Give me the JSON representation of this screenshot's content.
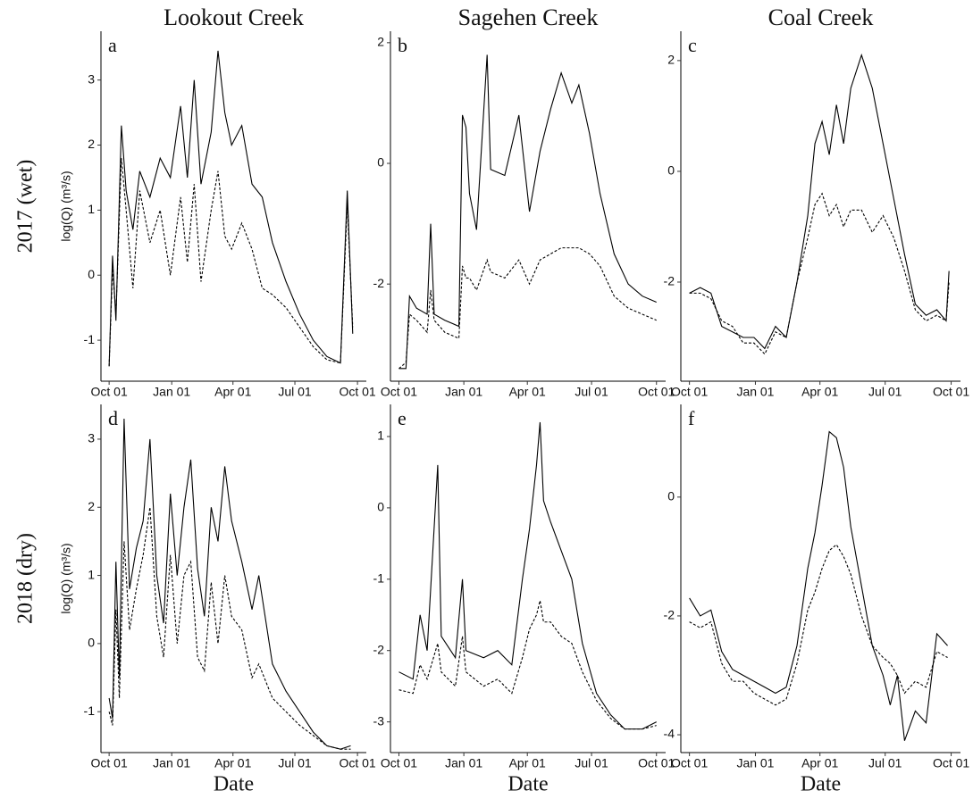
{
  "column_titles": [
    "Lookout Creek",
    "Sagehen Creek",
    "Coal Creek"
  ],
  "row_titles": [
    "2017 (wet)",
    "2018 (dry)"
  ],
  "chart_data": [
    {
      "type": "line",
      "label": "a",
      "ylabel": "log(Q) (m³/s)",
      "x": [
        0,
        5,
        10,
        18,
        25,
        35,
        45,
        60,
        75,
        90,
        105,
        115,
        125,
        135,
        150,
        160,
        170,
        180,
        195,
        210,
        225,
        240,
        260,
        280,
        300,
        320,
        340,
        350,
        358
      ],
      "series": [
        {
          "color": "#000000",
          "linestyle": "solid",
          "values": [
            -1.4,
            0.3,
            -0.7,
            2.3,
            1.3,
            0.7,
            1.6,
            1.2,
            1.8,
            1.5,
            2.6,
            1.5,
            3.0,
            1.4,
            2.2,
            3.45,
            2.5,
            2.0,
            2.3,
            1.4,
            1.2,
            0.5,
            -0.1,
            -0.6,
            -1.0,
            -1.25,
            -1.35,
            1.3,
            -0.9
          ]
        },
        {
          "color": "#000000",
          "linestyle": "dashed",
          "values": [
            -1.4,
            0.1,
            -0.6,
            1.8,
            1.0,
            -0.2,
            1.3,
            0.5,
            1.0,
            0.0,
            1.2,
            0.2,
            1.4,
            -0.1,
            1.0,
            1.6,
            0.6,
            0.4,
            0.8,
            0.4,
            -0.2,
            -0.3,
            -0.5,
            -0.8,
            -1.1,
            -1.3,
            -1.35,
            1.1,
            -0.8
          ]
        }
      ],
      "xlim": [
        -12,
        378
      ],
      "xticks": [
        {
          "value": 0,
          "label": "Oct 01"
        },
        {
          "value": 92,
          "label": "Jan 01"
        },
        {
          "value": 182,
          "label": "Apr 01"
        },
        {
          "value": 273,
          "label": "Jul 01"
        },
        {
          "value": 365,
          "label": "Oct 01"
        }
      ],
      "ylim": [
        -1.63,
        3.75
      ],
      "yticks": [
        -1,
        0,
        1,
        2,
        3
      ]
    },
    {
      "type": "line",
      "label": "b",
      "x": [
        0,
        10,
        15,
        25,
        40,
        45,
        50,
        65,
        85,
        90,
        95,
        100,
        110,
        125,
        130,
        150,
        170,
        185,
        200,
        215,
        230,
        245,
        255,
        270,
        285,
        305,
        325,
        345,
        365
      ],
      "series": [
        {
          "color": "#000000",
          "linestyle": "solid",
          "values": [
            -3.4,
            -3.4,
            -2.2,
            -2.4,
            -2.5,
            -1.0,
            -2.5,
            -2.6,
            -2.7,
            0.8,
            0.6,
            -0.5,
            -1.1,
            1.8,
            -0.1,
            -0.2,
            0.8,
            -0.8,
            0.2,
            0.9,
            1.5,
            1.0,
            1.3,
            0.5,
            -0.5,
            -1.5,
            -2.0,
            -2.2,
            -2.3
          ]
        },
        {
          "color": "#000000",
          "linestyle": "dashed",
          "values": [
            -3.4,
            -3.3,
            -2.5,
            -2.6,
            -2.8,
            -2.1,
            -2.6,
            -2.8,
            -2.9,
            -1.7,
            -1.9,
            -1.9,
            -2.1,
            -1.6,
            -1.8,
            -1.9,
            -1.6,
            -2.0,
            -1.6,
            -1.5,
            -1.4,
            -1.4,
            -1.4,
            -1.5,
            -1.7,
            -2.2,
            -2.4,
            -2.5,
            -2.6
          ]
        }
      ],
      "xlim": [
        -12,
        378
      ],
      "xticks": [
        {
          "value": 0,
          "label": "Oct 01"
        },
        {
          "value": 92,
          "label": "Jan 01"
        },
        {
          "value": 182,
          "label": "Apr 01"
        },
        {
          "value": 273,
          "label": "Jul 01"
        },
        {
          "value": 365,
          "label": "Oct 01"
        }
      ],
      "ylim": [
        -3.61,
        2.19
      ],
      "yticks": [
        -2,
        0,
        2
      ]
    },
    {
      "type": "line",
      "label": "c",
      "x": [
        0,
        15,
        30,
        45,
        60,
        75,
        90,
        105,
        120,
        135,
        150,
        165,
        175,
        185,
        195,
        205,
        215,
        225,
        240,
        255,
        270,
        285,
        300,
        315,
        330,
        345,
        358,
        362
      ],
      "series": [
        {
          "color": "#000000",
          "linestyle": "solid",
          "values": [
            -2.2,
            -2.1,
            -2.2,
            -2.8,
            -2.9,
            -3.0,
            -3.0,
            -3.2,
            -2.8,
            -3.0,
            -2.0,
            -0.8,
            0.5,
            0.9,
            0.3,
            1.2,
            0.5,
            1.5,
            2.1,
            1.5,
            0.5,
            -0.5,
            -1.5,
            -2.4,
            -2.6,
            -2.5,
            -2.7,
            -1.8
          ]
        },
        {
          "color": "#000000",
          "linestyle": "dashed",
          "values": [
            -2.2,
            -2.2,
            -2.3,
            -2.7,
            -2.8,
            -3.1,
            -3.1,
            -3.3,
            -2.9,
            -3.0,
            -2.0,
            -1.2,
            -0.6,
            -0.4,
            -0.8,
            -0.6,
            -1.0,
            -0.7,
            -0.7,
            -1.1,
            -0.8,
            -1.2,
            -1.8,
            -2.5,
            -2.7,
            -2.6,
            -2.7,
            -2.0
          ]
        }
      ],
      "xlim": [
        -12,
        378
      ],
      "xticks": [
        {
          "value": 0,
          "label": "Oct 01"
        },
        {
          "value": 92,
          "label": "Jan 01"
        },
        {
          "value": 182,
          "label": "Apr 01"
        },
        {
          "value": 273,
          "label": "Jul 01"
        },
        {
          "value": 365,
          "label": "Oct 01"
        }
      ],
      "ylim": [
        -3.79,
        2.53
      ],
      "yticks": [
        -2,
        0,
        2
      ]
    },
    {
      "type": "line",
      "label": "d",
      "ylabel": "log(Q) (m³/s)",
      "xlabel": "Date",
      "x": [
        0,
        5,
        10,
        15,
        22,
        30,
        40,
        50,
        60,
        70,
        80,
        90,
        100,
        110,
        120,
        130,
        140,
        150,
        160,
        170,
        180,
        195,
        210,
        220,
        240,
        260,
        280,
        300,
        320,
        340,
        355
      ],
      "series": [
        {
          "color": "#000000",
          "linestyle": "solid",
          "values": [
            -0.8,
            -1.1,
            1.2,
            -0.5,
            3.3,
            0.8,
            1.4,
            1.8,
            3.0,
            1.0,
            0.3,
            2.2,
            1.0,
            2.0,
            2.7,
            1.1,
            0.4,
            2.0,
            1.5,
            2.6,
            1.8,
            1.2,
            0.5,
            1.0,
            -0.3,
            -0.7,
            -1.0,
            -1.3,
            -1.5,
            -1.55,
            -1.5
          ]
        },
        {
          "color": "#000000",
          "linestyle": "dashed",
          "values": [
            -1.0,
            -1.2,
            0.5,
            -0.8,
            1.5,
            0.2,
            0.8,
            1.3,
            2.0,
            0.4,
            -0.2,
            1.3,
            0.0,
            1.0,
            1.2,
            -0.2,
            -0.4,
            0.9,
            0.0,
            1.0,
            0.4,
            0.2,
            -0.5,
            -0.3,
            -0.8,
            -1.0,
            -1.2,
            -1.35,
            -1.5,
            -1.55,
            -1.55
          ]
        }
      ],
      "xlim": [
        -12,
        378
      ],
      "xticks": [
        {
          "value": 0,
          "label": "Oct 01"
        },
        {
          "value": 92,
          "label": "Jan 01"
        },
        {
          "value": 182,
          "label": "Apr 01"
        },
        {
          "value": 273,
          "label": "Jul 01"
        },
        {
          "value": 365,
          "label": "Oct 01"
        }
      ],
      "ylim": [
        -1.6,
        3.51
      ],
      "yticks": [
        -1,
        0,
        1,
        2,
        3
      ]
    },
    {
      "type": "line",
      "label": "e",
      "xlabel": "Date",
      "x": [
        0,
        20,
        30,
        40,
        55,
        60,
        80,
        90,
        95,
        120,
        140,
        160,
        175,
        185,
        195,
        200,
        205,
        215,
        230,
        245,
        260,
        280,
        300,
        320,
        345,
        365
      ],
      "series": [
        {
          "color": "#000000",
          "linestyle": "solid",
          "values": [
            -2.3,
            -2.4,
            -1.5,
            -2.0,
            0.6,
            -1.8,
            -2.1,
            -1.0,
            -2.0,
            -2.1,
            -2.0,
            -2.2,
            -1.0,
            -0.3,
            0.6,
            1.2,
            0.1,
            -0.2,
            -0.6,
            -1.0,
            -1.9,
            -2.6,
            -2.9,
            -3.1,
            -3.1,
            -3.0
          ]
        },
        {
          "color": "#000000",
          "linestyle": "dashed",
          "values": [
            -2.55,
            -2.6,
            -2.2,
            -2.4,
            -1.9,
            -2.3,
            -2.5,
            -1.8,
            -2.3,
            -2.5,
            -2.4,
            -2.6,
            -2.1,
            -1.7,
            -1.5,
            -1.3,
            -1.6,
            -1.6,
            -1.8,
            -1.9,
            -2.3,
            -2.7,
            -2.95,
            -3.1,
            -3.1,
            -3.05
          ]
        }
      ],
      "xlim": [
        -12,
        378
      ],
      "xticks": [
        {
          "value": 0,
          "label": "Oct 01"
        },
        {
          "value": 92,
          "label": "Jan 01"
        },
        {
          "value": 182,
          "label": "Apr 01"
        },
        {
          "value": 273,
          "label": "Jul 01"
        },
        {
          "value": 365,
          "label": "Oct 01"
        }
      ],
      "ylim": [
        -3.43,
        1.45
      ],
      "yticks": [
        -3,
        -2,
        -1,
        0,
        1
      ]
    },
    {
      "type": "line",
      "label": "f",
      "xlabel": "Date",
      "x": [
        0,
        15,
        30,
        45,
        60,
        75,
        90,
        105,
        120,
        135,
        150,
        165,
        175,
        185,
        195,
        205,
        215,
        225,
        240,
        255,
        270,
        280,
        290,
        300,
        315,
        330,
        345,
        360
      ],
      "series": [
        {
          "color": "#000000",
          "linestyle": "solid",
          "values": [
            -1.7,
            -2.0,
            -1.9,
            -2.6,
            -2.9,
            -3.0,
            -3.1,
            -3.2,
            -3.3,
            -3.2,
            -2.5,
            -1.2,
            -0.6,
            0.2,
            1.1,
            1.0,
            0.5,
            -0.5,
            -1.5,
            -2.5,
            -3.0,
            -3.5,
            -3.0,
            -4.1,
            -3.6,
            -3.8,
            -2.3,
            -2.5
          ]
        },
        {
          "color": "#000000",
          "linestyle": "dashed",
          "values": [
            -2.1,
            -2.2,
            -2.1,
            -2.8,
            -3.1,
            -3.1,
            -3.3,
            -3.4,
            -3.5,
            -3.4,
            -2.8,
            -1.9,
            -1.6,
            -1.2,
            -0.9,
            -0.8,
            -1.0,
            -1.3,
            -2.0,
            -2.5,
            -2.7,
            -2.8,
            -3.0,
            -3.3,
            -3.1,
            -3.2,
            -2.6,
            -2.7
          ]
        }
      ],
      "xlim": [
        -12,
        378
      ],
      "xticks": [
        {
          "value": 0,
          "label": "Oct 01"
        },
        {
          "value": 92,
          "label": "Jan 01"
        },
        {
          "value": 182,
          "label": "Apr 01"
        },
        {
          "value": 273,
          "label": "Jul 01"
        },
        {
          "value": 365,
          "label": "Oct 01"
        }
      ],
      "ylim": [
        -4.3,
        1.56
      ],
      "yticks": [
        -4,
        -2,
        0
      ]
    }
  ]
}
